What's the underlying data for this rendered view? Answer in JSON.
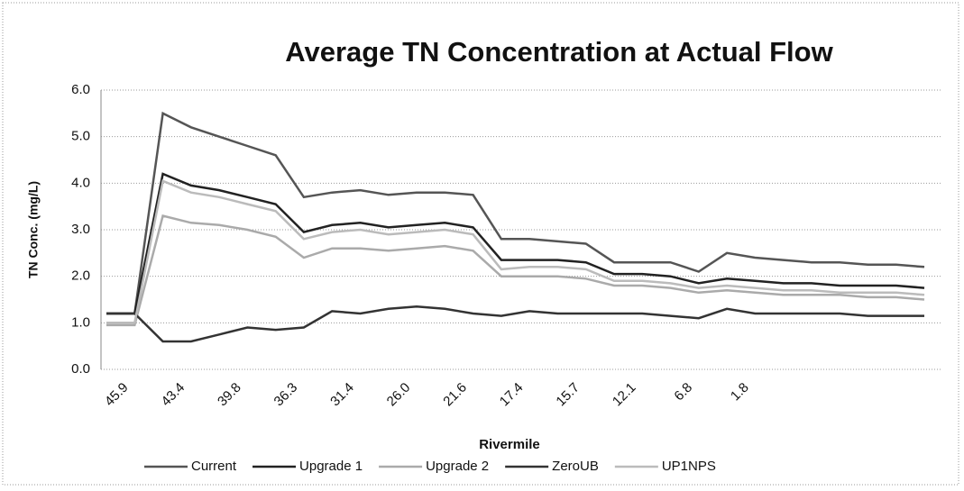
{
  "chart_data": {
    "type": "line",
    "title": "Average TN Concentration at Actual Flow",
    "xlabel": "Rivermile",
    "ylabel": "TN Conc. (mg/L)",
    "categories": [
      "45.9",
      null,
      "43.4",
      null,
      "39.8",
      null,
      "36.3",
      null,
      "31.4",
      null,
      "26.0",
      null,
      "21.6",
      null,
      "17.4",
      null,
      "15.7",
      null,
      "12.1",
      null,
      "6.8",
      null,
      "1.8",
      null,
      null,
      null,
      null,
      null,
      null,
      null
    ],
    "series": [
      {
        "name": "Current",
        "color": "#555555",
        "values": [
          1.2,
          1.2,
          5.5,
          5.2,
          5.0,
          4.8,
          4.6,
          3.7,
          3.8,
          3.85,
          3.75,
          3.8,
          3.8,
          3.75,
          2.8,
          2.8,
          2.75,
          2.7,
          2.3,
          2.3,
          2.3,
          2.1,
          2.5,
          2.4,
          2.35,
          2.3,
          2.3,
          2.25,
          2.25,
          2.2
        ]
      },
      {
        "name": "Upgrade 1",
        "color": "#222222",
        "values": [
          1.2,
          1.2,
          4.2,
          3.95,
          3.85,
          3.7,
          3.55,
          2.95,
          3.1,
          3.15,
          3.05,
          3.1,
          3.15,
          3.05,
          2.35,
          2.35,
          2.35,
          2.3,
          2.05,
          2.05,
          2.0,
          1.85,
          1.95,
          1.9,
          1.85,
          1.85,
          1.8,
          1.8,
          1.8,
          1.75
        ]
      },
      {
        "name": "Upgrade 2",
        "color": "#aaaaaa",
        "values": [
          0.95,
          0.95,
          3.3,
          3.15,
          3.1,
          3.0,
          2.85,
          2.4,
          2.6,
          2.6,
          2.55,
          2.6,
          2.65,
          2.55,
          2.0,
          2.0,
          2.0,
          1.95,
          1.8,
          1.8,
          1.75,
          1.65,
          1.7,
          1.65,
          1.6,
          1.6,
          1.6,
          1.55,
          1.55,
          1.5
        ]
      },
      {
        "name": "ZeroUB",
        "color": "#333333",
        "values": [
          1.2,
          1.2,
          0.6,
          0.6,
          0.75,
          0.9,
          0.85,
          0.9,
          1.25,
          1.2,
          1.3,
          1.35,
          1.3,
          1.2,
          1.15,
          1.25,
          1.2,
          1.2,
          1.2,
          1.2,
          1.15,
          1.1,
          1.3,
          1.2,
          1.2,
          1.2,
          1.2,
          1.15,
          1.15,
          1.15
        ]
      },
      {
        "name": "UP1NPS",
        "color": "#bbbbbb",
        "values": [
          1.0,
          1.0,
          4.05,
          3.8,
          3.7,
          3.55,
          3.4,
          2.8,
          2.95,
          3.0,
          2.9,
          2.95,
          3.0,
          2.9,
          2.15,
          2.2,
          2.2,
          2.15,
          1.9,
          1.9,
          1.85,
          1.75,
          1.8,
          1.75,
          1.7,
          1.7,
          1.65,
          1.65,
          1.65,
          1.6
        ]
      }
    ],
    "ylim": [
      0,
      6
    ],
    "yticks": [
      {
        "value": 0,
        "label": "0.0"
      },
      {
        "value": 1,
        "label": "1.0"
      },
      {
        "value": 2,
        "label": "2.0"
      },
      {
        "value": 3,
        "label": "3.0"
      },
      {
        "value": 4,
        "label": "4.0"
      },
      {
        "value": 5,
        "label": "5.0"
      },
      {
        "value": 6,
        "label": "6.0"
      }
    ],
    "grid": true,
    "legend": "bottom"
  }
}
